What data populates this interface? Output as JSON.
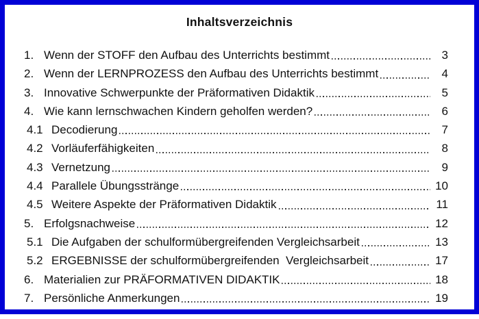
{
  "page": {
    "title": "Inhaltsverzeichnis"
  },
  "colors": {
    "border_blue": "#0101d6",
    "text": "#111111",
    "background": "#ffffff"
  },
  "toc": {
    "entries": [
      {
        "num": "1.",
        "label": "Wenn der STOFF den Aufbau des Unterrichts bestimmt",
        "page": "3",
        "level": 1
      },
      {
        "num": "2.",
        "label": "Wenn der LERNPROZESS den Aufbau des Unterrichts bestimmt",
        "page": "4",
        "level": 1
      },
      {
        "num": "3.",
        "label": "Innovative Schwerpunkte der Präformativen Didaktik",
        "page": "5",
        "level": 1
      },
      {
        "num": "4.",
        "label": "Wie kann lernschwachen Kindern geholfen werden?",
        "page": "6",
        "level": 1
      },
      {
        "num": "4.1",
        "label": "Decodierung",
        "page": "7",
        "level": 2
      },
      {
        "num": "4.2",
        "label": "Vorläuferfähigkeiten",
        "page": "8",
        "level": 2
      },
      {
        "num": "4.3",
        "label": "Vernetzung",
        "page": "9",
        "level": 2
      },
      {
        "num": "4.4",
        "label": "Parallele Übungsstränge",
        "page": "10",
        "level": 2
      },
      {
        "num": "4.5",
        "label": "Weitere Aspekte der Präformativen Didaktik",
        "page": "11",
        "level": 2
      },
      {
        "num": "5.",
        "label": "Erfolgsnachweise",
        "page": "12",
        "level": 1
      },
      {
        "num": "5.1",
        "label": "Die Aufgaben der schulformübergreifenden Vergleichsarbeit",
        "page": "13",
        "level": 2
      },
      {
        "num": "5.2",
        "label": "ERGEBNISSE der schulformübergreifenden  Vergleichsarbeit",
        "page": "17",
        "level": 2
      },
      {
        "num": "6.",
        "label": "Materialien zur PRÄFORMATIVEN DIDAKTIK",
        "page": "18",
        "level": 1
      },
      {
        "num": "7.",
        "label": "Persönliche Anmerkungen",
        "page": "19",
        "level": 1
      }
    ]
  }
}
